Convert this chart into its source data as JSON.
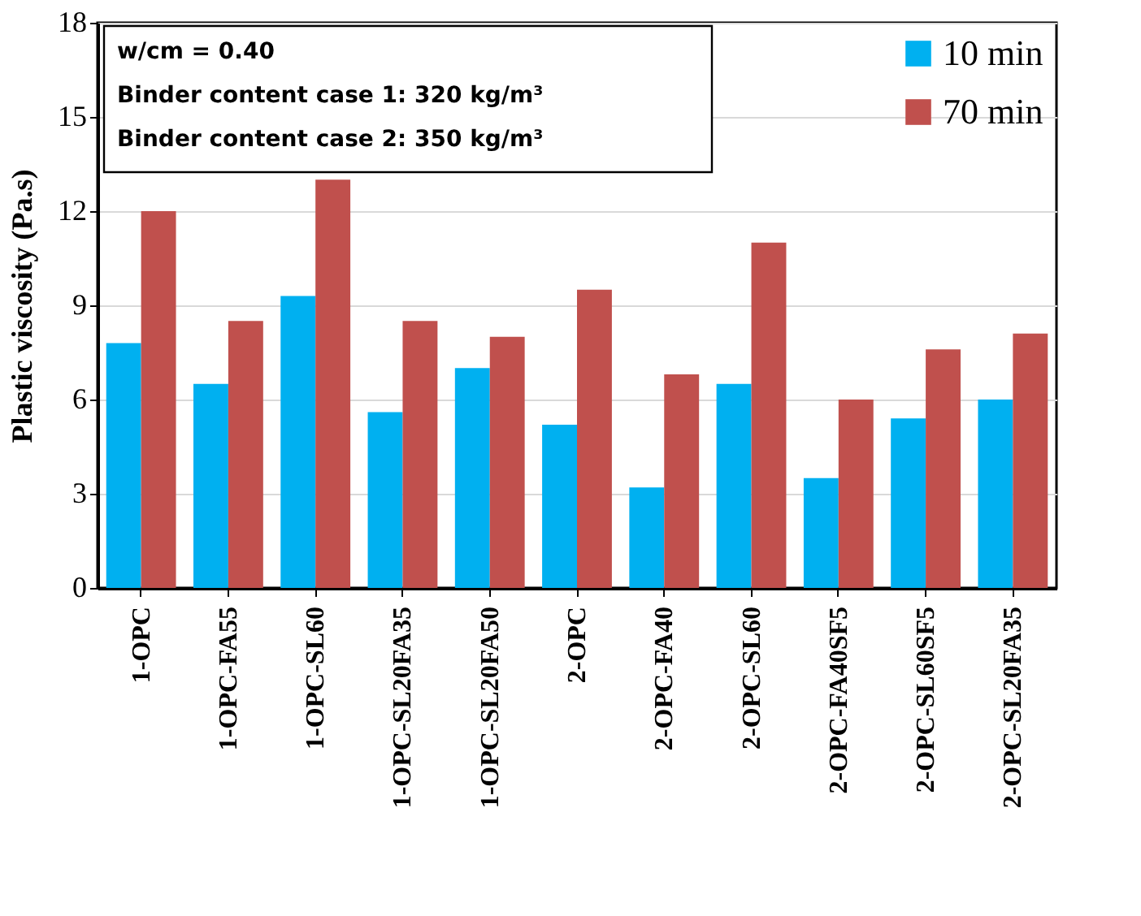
{
  "chart_data": {
    "type": "bar",
    "ylabel": "Plastic viscosity (Pa.s)",
    "categories": [
      "1-OPC",
      "1-OPC-FA55",
      "1-OPC-SL60",
      "1-OPC-SL20FA35",
      "1-OPC-SL20FA50",
      "2-OPC",
      "2-OPC-FA40",
      "2-OPC-SL60",
      "2-OPC-FA40SF5",
      "2-OPC-SL60SF5",
      "2-OPC-SL20FA35"
    ],
    "series": [
      {
        "name": "10 min",
        "color": "#00b0f0",
        "values": [
          7.8,
          6.5,
          9.3,
          5.6,
          7.0,
          5.2,
          3.2,
          6.5,
          3.5,
          5.4,
          6.0
        ]
      },
      {
        "name": "70 min",
        "color": "#c0504d",
        "values": [
          12,
          8.5,
          13,
          8.5,
          8.0,
          9.5,
          6.8,
          11,
          6.0,
          7.6,
          8.1
        ]
      }
    ],
    "ylim": [
      0,
      18
    ],
    "yticks": [
      0,
      3,
      6,
      9,
      12,
      15,
      18
    ],
    "grid": "y",
    "legend": "top right",
    "annotations": [
      "w/cm = 0.40",
      "Binder content case 1: 320 kg/m³",
      "Binder content case 2: 350 kg/m³"
    ]
  }
}
